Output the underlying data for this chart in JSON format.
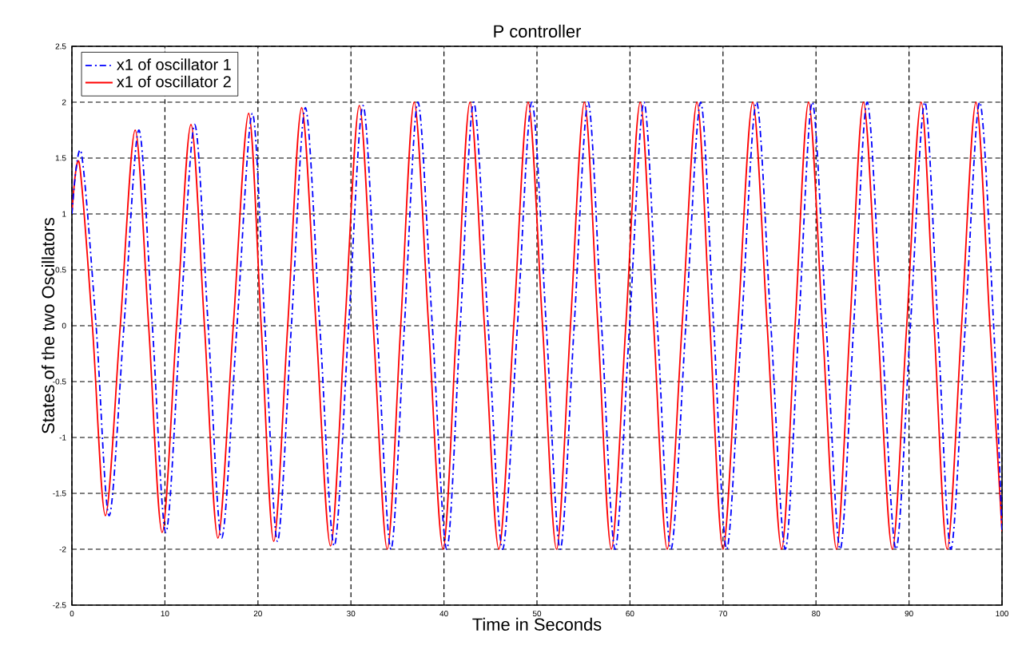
{
  "chart_data": {
    "type": "line",
    "title": "P controller",
    "xlabel": "Time in Seconds",
    "ylabel": "States of the two Oscillators",
    "x": [
      0,
      0.8,
      2.2,
      3.6,
      5.2,
      6.8,
      8.25,
      9.7,
      11.25,
      12.8,
      14.25,
      15.7,
      17.35,
      19.0,
      20.35,
      21.7,
      23.2,
      24.7,
      26.25,
      27.8,
      29.35,
      30.9,
      32.4,
      33.9,
      35.35,
      36.8,
      38.35,
      39.9,
      41.35,
      42.8,
      44.35,
      45.9,
      47.5,
      49.05,
      50.6,
      52.1,
      53.6,
      55.1,
      56.55,
      58.0,
      59.55,
      61.1,
      62.55,
      64.0,
      65.6,
      67.2,
      68.6,
      70.0,
      71.6,
      73.2,
      74.75,
      76.3,
      77.75,
      79.2,
      80.7,
      82.2,
      83.65,
      85.1,
      86.65,
      88.2,
      89.75,
      91.3,
      92.7,
      94.1,
      95.65,
      97.2,
      98.7,
      100
    ],
    "series": [
      {
        "name": "x1 of oscillator 1",
        "color": "#0000ff",
        "line_style": "dashed",
        "x": [
          0,
          1.0,
          2.6,
          4.0,
          5.6,
          7.2,
          8.65,
          10.1,
          11.65,
          13.2,
          14.65,
          16.1,
          17.75,
          19.4,
          20.75,
          22.1,
          23.6,
          25.1,
          26.65,
          28.2,
          29.75,
          31.3,
          32.8,
          34.3,
          35.75,
          37.2,
          38.75,
          40.3,
          41.75,
          43.2,
          44.75,
          46.3,
          47.9,
          49.45,
          51.0,
          52.5,
          54.0,
          55.5,
          56.95,
          58.4,
          59.95,
          61.5,
          62.95,
          64.4,
          66.0,
          67.6,
          69.0,
          70.4,
          72.0,
          73.6,
          75.15,
          76.7,
          78.15,
          79.6,
          81.1,
          82.6,
          84.05,
          85.5,
          87.05,
          88.6,
          90.15,
          91.7,
          93.1,
          94.5,
          96.05,
          97.6,
          99.1,
          100
        ],
        "values": [
          1.0,
          1.55,
          0,
          -1.7,
          0,
          1.75,
          0,
          -1.85,
          0,
          1.8,
          0,
          -1.9,
          0,
          1.9,
          0,
          -1.93,
          0,
          1.95,
          0,
          -1.97,
          0,
          1.97,
          0,
          -2,
          0,
          2,
          0,
          -2,
          0,
          2,
          0,
          -2,
          0,
          2,
          0,
          -2,
          0,
          2,
          0,
          -2,
          0,
          2,
          0,
          -2,
          0,
          2,
          0,
          -2,
          0,
          2,
          0,
          -2,
          0,
          2,
          0,
          -2,
          0,
          2,
          0,
          -2,
          0,
          2,
          0,
          -2,
          0,
          2,
          0,
          -1.84
        ]
      },
      {
        "name": "x1 of oscillator 2",
        "color": "#ff0000",
        "line_style": "solid",
        "values": [
          1.0,
          1.45,
          0,
          -1.7,
          0,
          1.75,
          0,
          -1.85,
          0,
          1.8,
          0,
          -1.9,
          0,
          1.9,
          0,
          -1.93,
          0,
          1.95,
          0,
          -1.97,
          0,
          1.97,
          0,
          -2,
          0,
          2,
          0,
          -2,
          0,
          2,
          0,
          -2,
          0,
          2,
          0,
          -2,
          0,
          2,
          0,
          -2,
          0,
          2,
          0,
          -2,
          0,
          2,
          0,
          -2,
          0,
          2,
          0,
          -2,
          0,
          2,
          0,
          -2,
          0,
          2,
          0,
          -2,
          0,
          2,
          0,
          -2,
          0,
          2,
          0,
          -1.84
        ]
      }
    ],
    "xlim": [
      0,
      100
    ],
    "ylim": [
      -2.5,
      2.5
    ],
    "xticks": [
      0,
      10,
      20,
      30,
      40,
      50,
      60,
      70,
      80,
      90,
      100
    ],
    "yticks": [
      -2.5,
      -2,
      -1.5,
      -1,
      -0.5,
      0,
      0.5,
      1,
      1.5,
      2,
      2.5
    ],
    "grid": true,
    "legend": "top left",
    "marker": "none"
  }
}
